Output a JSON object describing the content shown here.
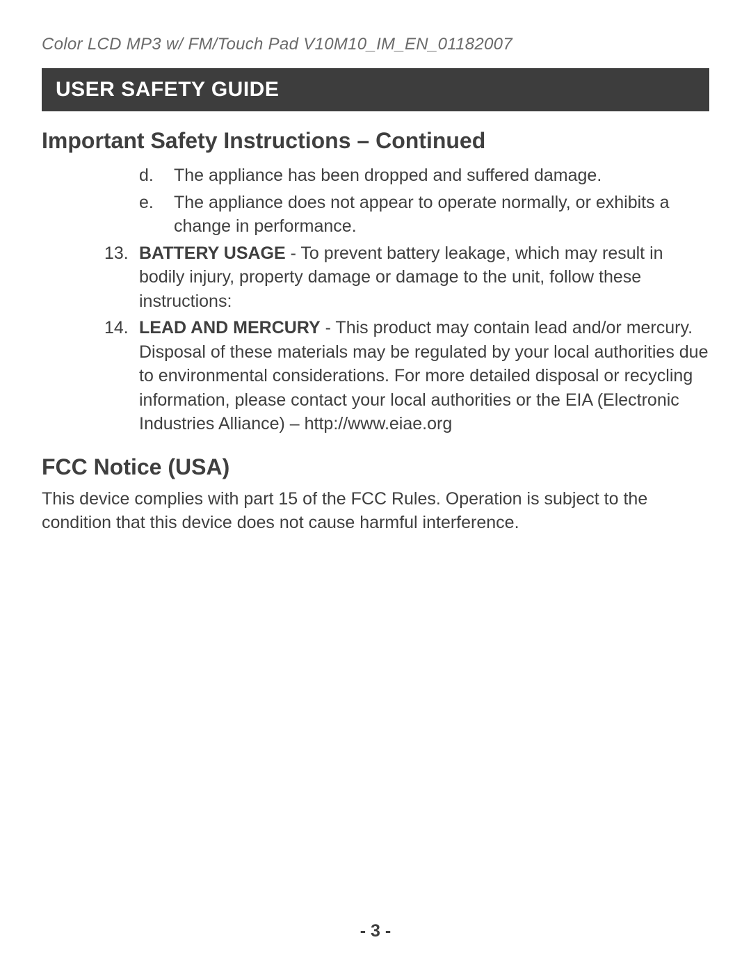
{
  "header": {
    "product_line": "Color LCD MP3 w/ FM/Touch Pad    V10M10_IM_EN_01182007"
  },
  "title_bar": "USER SAFETY GUIDE",
  "subtitle": "Important Safety Instructions – Continued",
  "sub_items": [
    {
      "marker": "d.",
      "text": "The appliance has been dropped and suffered damage."
    },
    {
      "marker": "e.",
      "text": "The appliance does not appear to operate normally, or exhibits a change in performance."
    }
  ],
  "main_items": [
    {
      "marker": "13.",
      "lead": "BATTERY USAGE",
      "text": " - To prevent battery leakage, which may result in bodily injury, property damage or damage to the unit, follow these instructions:"
    },
    {
      "marker": "14.",
      "lead": "LEAD AND MERCURY",
      "text": " - This product may contain lead and/or mercury. Disposal of these materials may be regulated by your local authorities due to environmental considerations. For more detailed disposal or recycling information, please contact your local authorities or the EIA (Electronic Industries Alliance) – http://www.eiae.org"
    }
  ],
  "fcc": {
    "heading": "FCC Notice (USA)",
    "body": "This device complies with part 15 of the FCC Rules. Operation is subject to the condition that this device does not cause harmful interference."
  },
  "page_number": "- 3 -",
  "colors": {
    "text": "#3f3f3f",
    "header_text": "#6a6a6a",
    "title_bar_bg": "#3d3d3d",
    "title_bar_text": "#ffffff",
    "background": "#ffffff"
  },
  "typography": {
    "header_fontsize": 24,
    "title_bar_fontsize": 30,
    "subtitle_fontsize": 32,
    "body_fontsize": 25,
    "page_number_fontsize": 25
  }
}
